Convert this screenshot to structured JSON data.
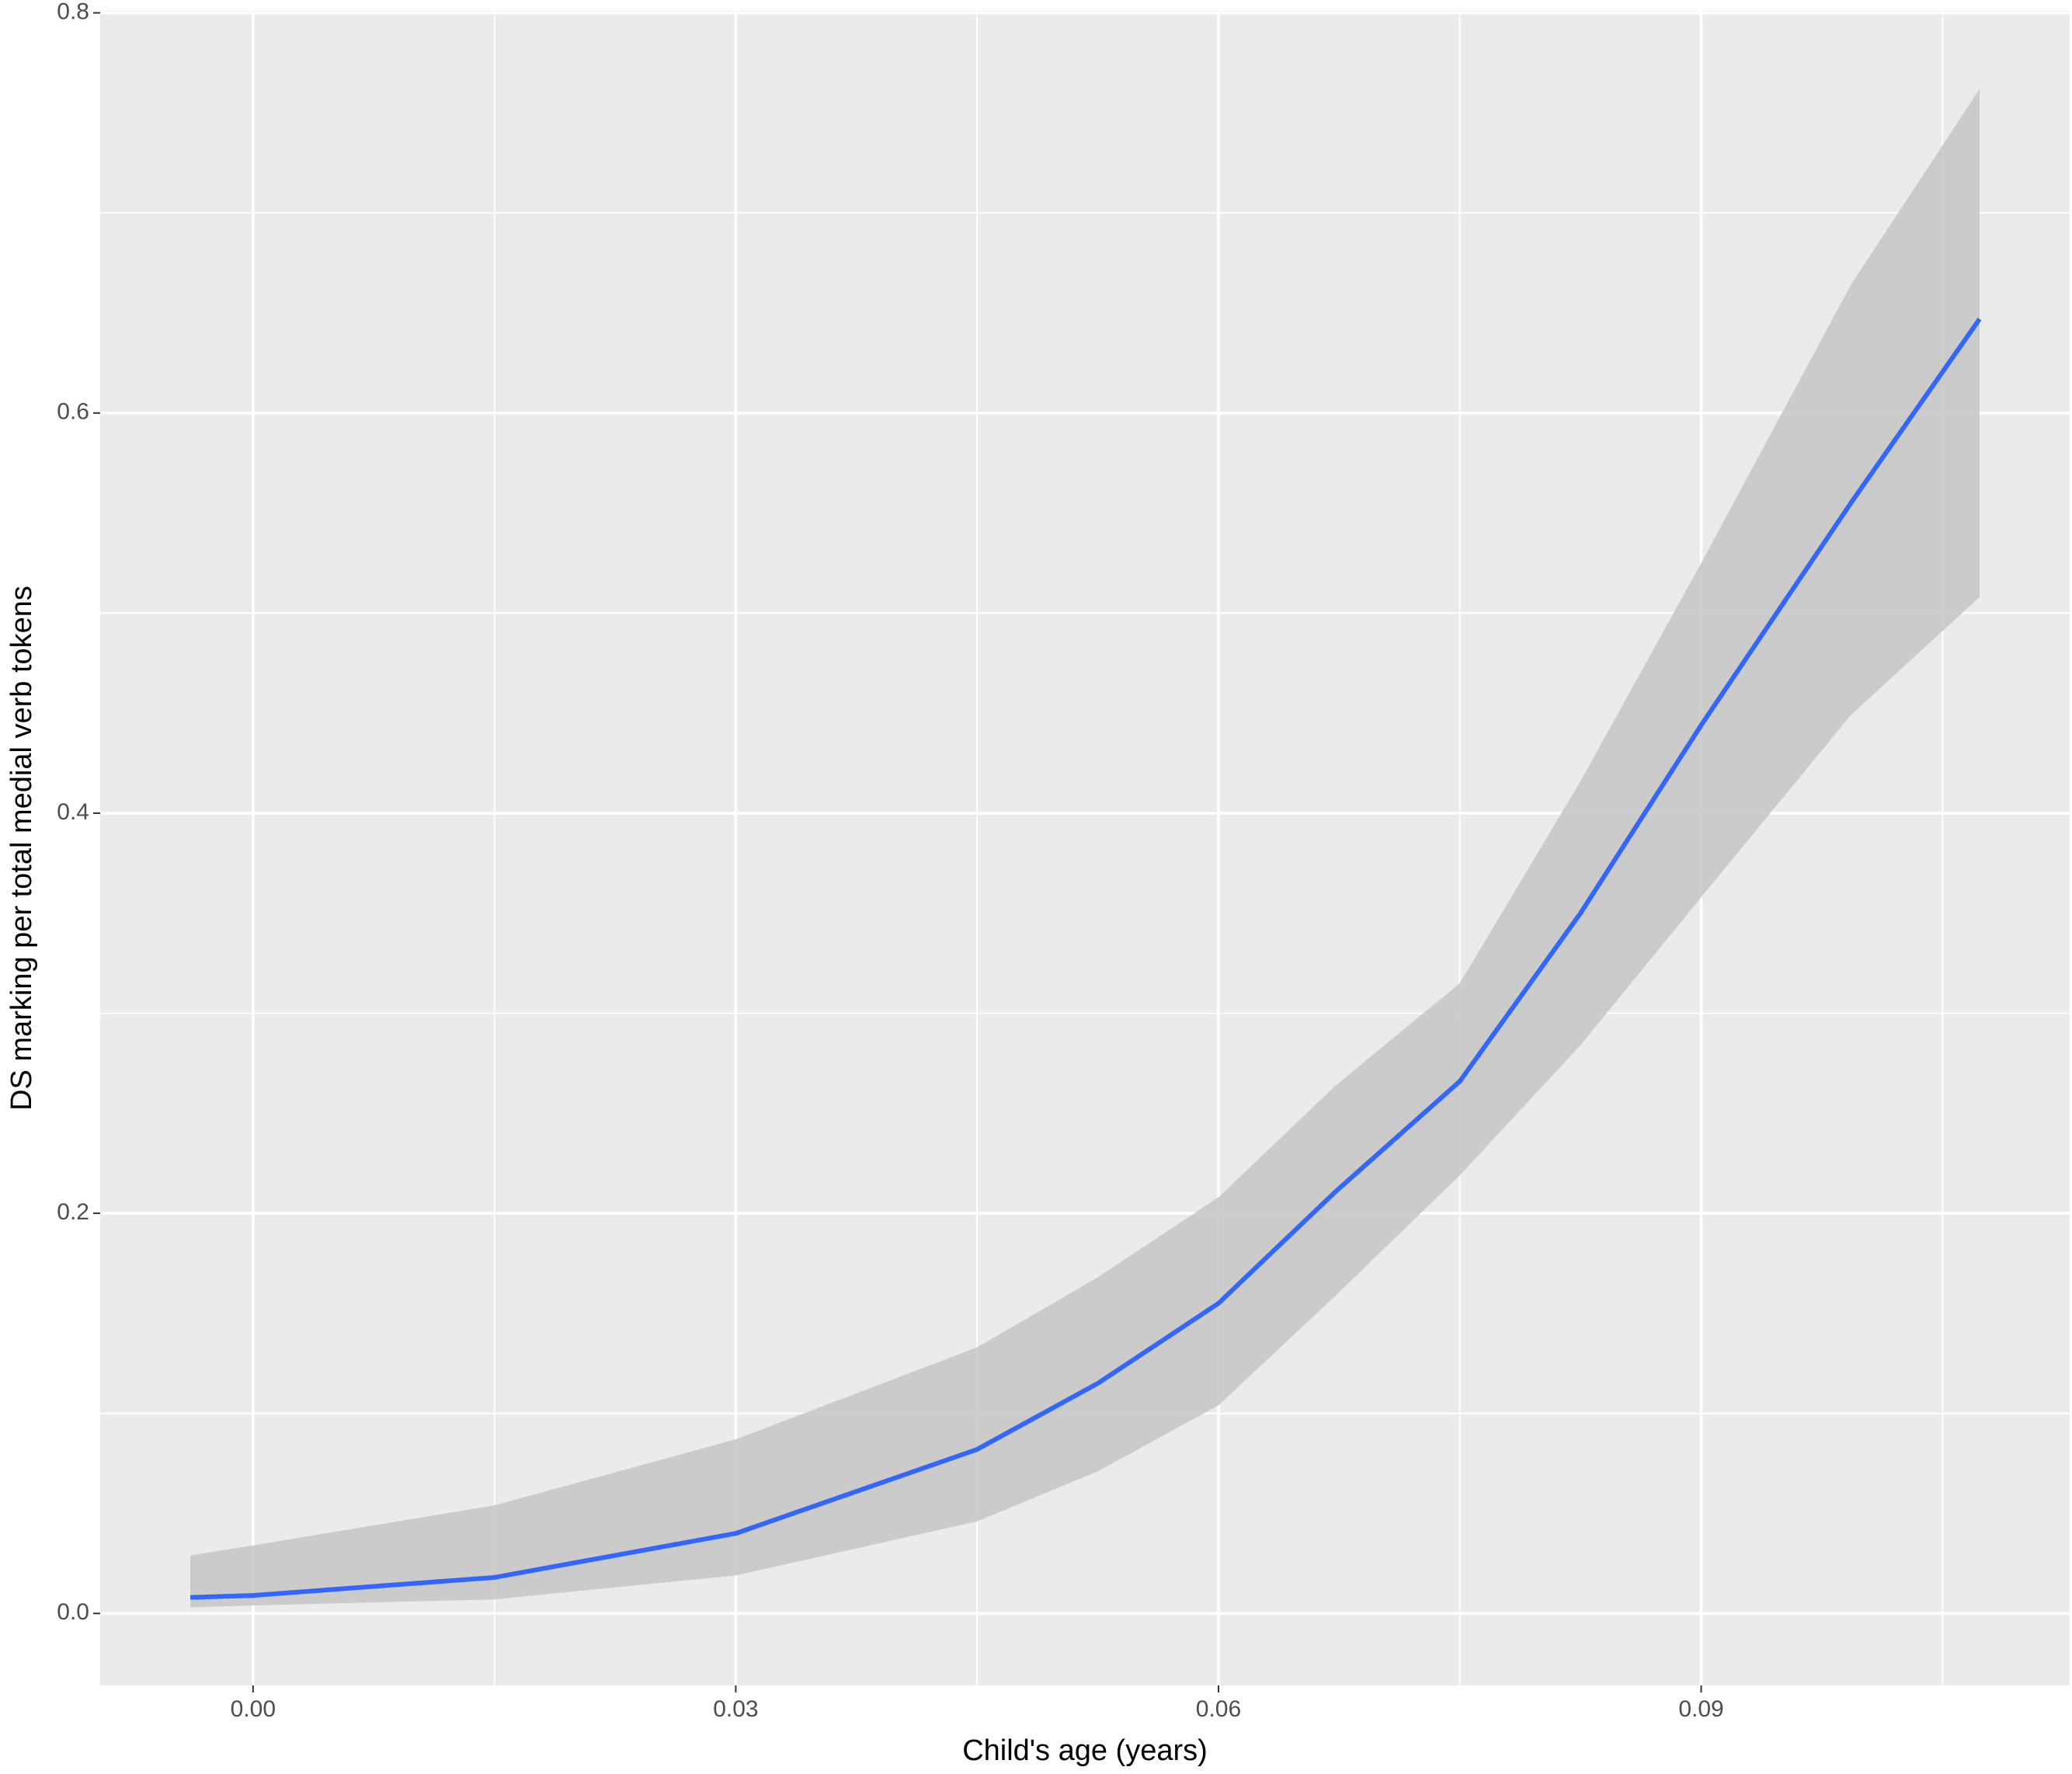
{
  "chart_data": {
    "type": "line",
    "x_label": "Child's age (years)",
    "y_label": "DS marking per total medial verb tokens",
    "x": [
      -0.0039,
      0,
      0.015,
      0.03,
      0.045,
      0.0525,
      0.06,
      0.0673,
      0.075,
      0.0825,
      0.09,
      0.0993,
      0.1073
    ],
    "values": [
      0.008,
      0.009,
      0.018,
      0.04,
      0.082,
      0.115,
      0.155,
      0.211,
      0.266,
      0.35,
      0.444,
      0.555,
      0.647
    ],
    "lower": [
      0.003,
      0.004,
      0.007,
      0.019,
      0.046,
      0.071,
      0.104,
      0.159,
      0.219,
      0.284,
      0.358,
      0.449,
      0.508
    ],
    "upper": [
      0.029,
      0.034,
      0.054,
      0.087,
      0.133,
      0.168,
      0.208,
      0.264,
      0.315,
      0.416,
      0.525,
      0.664,
      0.762
    ],
    "color": "#3366ff",
    "band_color": "#c8c8c8",
    "xlim": [
      -0.0095,
      0.1129
    ],
    "ylim": [
      -0.036,
      0.801
    ],
    "xticks": [
      {
        "value": 0,
        "label": "0.00"
      },
      0.03,
      0.06,
      0.09
    ],
    "yticks": [
      {
        "value": 0,
        "label": "0.0"
      },
      0.2,
      0.4,
      0.6,
      0.8
    ],
    "grid": true
  }
}
